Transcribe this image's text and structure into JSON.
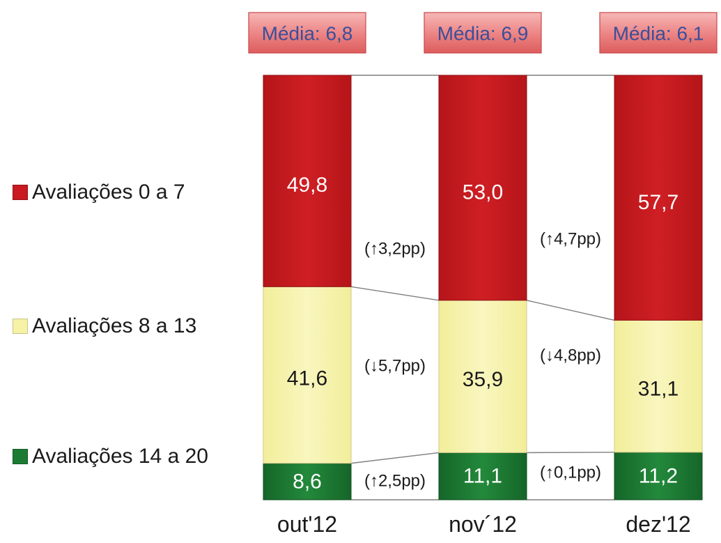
{
  "chart_data": {
    "type": "bar",
    "stacked": true,
    "normalized_to_100": true,
    "categories": [
      "out'12",
      "nov´12",
      "dez'12"
    ],
    "series": [
      {
        "name": "Avaliações 14 a 20",
        "color": "#1d7a33",
        "values": [
          8.6,
          11.1,
          11.2
        ],
        "labels": [
          "8,6",
          "11,1",
          "11,2"
        ]
      },
      {
        "name": "Avaliações 8 a 13",
        "color": "#f6f2a6",
        "values": [
          41.6,
          35.9,
          31.1
        ],
        "labels": [
          "41,6",
          "35,9",
          "31,1"
        ]
      },
      {
        "name": "Avaliações 0 a 7",
        "color": "#c91a1f",
        "values": [
          49.8,
          53.0,
          57.7
        ],
        "labels": [
          "49,8",
          "53,0",
          "57,7"
        ]
      }
    ],
    "means": [
      "Média: 6,8",
      "Média: 6,9",
      "Média: 6,1"
    ],
    "changes": [
      {
        "between": [
          0,
          1
        ],
        "items": [
          "(↑3,2pp)",
          "(↓5,7pp)",
          "(↑2,5pp)"
        ]
      },
      {
        "between": [
          1,
          2
        ],
        "items": [
          "(↑4,7pp)",
          "(↓4,8pp)",
          "(↑0,1pp)"
        ]
      }
    ],
    "legend_position": "left"
  },
  "legend": [
    {
      "label": "Avaliações 0 a 7",
      "color": "#c91a1f"
    },
    {
      "label": "Avaliações 8 a 13",
      "color": "#f6f2a6"
    },
    {
      "label": "Avaliações 14 a 20",
      "color": "#1d7a33"
    }
  ]
}
